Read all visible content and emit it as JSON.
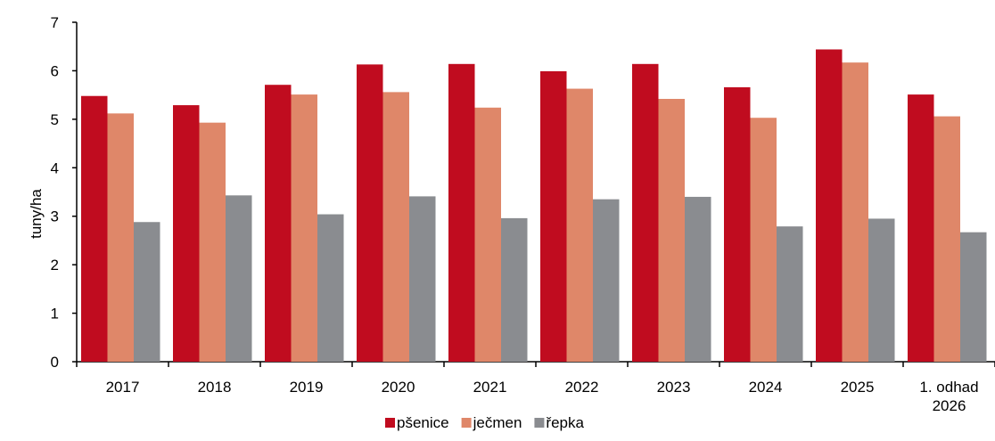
{
  "chart_data": {
    "type": "bar",
    "ylabel": "tuny/ha",
    "ylim": [
      0,
      7
    ],
    "yticks": [
      0,
      1,
      2,
      3,
      4,
      5,
      6,
      7
    ],
    "grid": false,
    "legend_position": "bottom-center",
    "categories": [
      [
        "2017"
      ],
      [
        "2018"
      ],
      [
        "2019"
      ],
      [
        "2020"
      ],
      [
        "2021"
      ],
      [
        "2022"
      ],
      [
        "2023"
      ],
      [
        "2024"
      ],
      [
        "2025"
      ],
      [
        "1. odhad",
        "2026"
      ]
    ],
    "series": [
      {
        "name": "pšenice",
        "color": "#c00c1f",
        "values": [
          5.48,
          5.29,
          5.71,
          6.13,
          6.14,
          5.99,
          6.14,
          5.66,
          6.44,
          5.51
        ]
      },
      {
        "name": "ječmen",
        "color": "#df8769",
        "values": [
          5.12,
          4.93,
          5.51,
          5.56,
          5.24,
          5.63,
          5.42,
          5.03,
          6.17,
          5.06
        ]
      },
      {
        "name": "řepka",
        "color": "#8a8c90",
        "values": [
          2.88,
          3.43,
          3.04,
          3.41,
          2.96,
          3.35,
          3.4,
          2.79,
          2.95,
          2.67
        ]
      }
    ]
  }
}
